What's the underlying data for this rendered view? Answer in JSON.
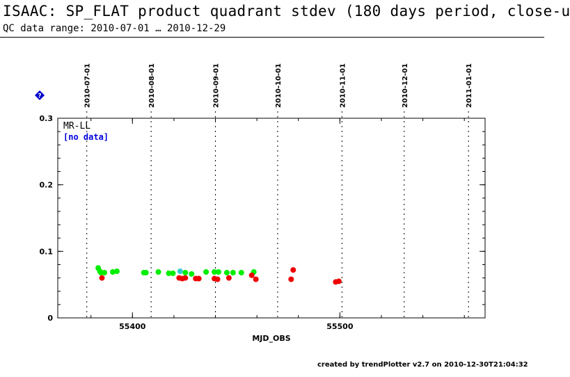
{
  "header": {
    "title": "ISAAC: SP_FLAT product quadrant stdev (180 days period, close-u",
    "subtitle": "QC data range: 2010-07-01 … 2010-12-29"
  },
  "footer": {
    "text": "created by trendPlotter v2.7 on 2010-12-30T21:04:32"
  },
  "help_icon": {
    "icon": "help-diamond-icon",
    "color": "#0000cc"
  },
  "chart_data": {
    "type": "scatter",
    "xlabel": "MJD_OBS",
    "xlim": [
      55364,
      55570
    ],
    "ylim": [
      0,
      0.3
    ],
    "x_ticks": [
      55400,
      55500
    ],
    "y_ticks": [
      0,
      0.1,
      0.2,
      0.3
    ],
    "y_tick_labels": [
      "0",
      "0.1",
      "0.2",
      "0.3"
    ],
    "date_lines": [
      {
        "mjd": 55378,
        "label": "2010-07-01"
      },
      {
        "mjd": 55409,
        "label": "2010-08-01"
      },
      {
        "mjd": 55440,
        "label": "2010-09-01"
      },
      {
        "mjd": 55470,
        "label": "2010-10-01"
      },
      {
        "mjd": 55501,
        "label": "2010-11-01"
      },
      {
        "mjd": 55531,
        "label": "2010-12-01"
      },
      {
        "mjd": 55562,
        "label": "2011-01-01"
      }
    ],
    "legend": {
      "series_label": "MR-LL",
      "status_label": "[no data]",
      "placement": "top-left"
    },
    "colors": {
      "green": "#00ee00",
      "red": "#ee0000",
      "cyan": "#33cccc",
      "no_data": "#0000dd"
    },
    "series": [
      {
        "color": "#00ee00",
        "points": [
          [
            55383.5,
            0.075
          ],
          [
            55384.3,
            0.07
          ],
          [
            55384.8,
            0.068
          ],
          [
            55386.5,
            0.068
          ],
          [
            55390.5,
            0.069
          ],
          [
            55392.5,
            0.07
          ],
          [
            55405.5,
            0.068
          ],
          [
            55406.5,
            0.068
          ],
          [
            55412.5,
            0.069
          ],
          [
            55417.5,
            0.067
          ],
          [
            55419.5,
            0.067
          ],
          [
            55425.5,
            0.068
          ],
          [
            55428.5,
            0.066
          ],
          [
            55435.5,
            0.069
          ],
          [
            55439.5,
            0.069
          ],
          [
            55441.5,
            0.069
          ],
          [
            55445.5,
            0.068
          ],
          [
            55448.5,
            0.068
          ],
          [
            55452.5,
            0.068
          ],
          [
            55458.5,
            0.069
          ]
        ]
      },
      {
        "color": "#ee0000",
        "points": [
          [
            55385.3,
            0.06
          ],
          [
            55422.5,
            0.06
          ],
          [
            55424.0,
            0.059
          ],
          [
            55425.5,
            0.06
          ],
          [
            55430.5,
            0.059
          ],
          [
            55432.0,
            0.059
          ],
          [
            55439.5,
            0.059
          ],
          [
            55441.0,
            0.058
          ],
          [
            55446.5,
            0.06
          ],
          [
            55457.5,
            0.064
          ],
          [
            55459.5,
            0.058
          ],
          [
            55476.5,
            0.058
          ],
          [
            55477.5,
            0.072
          ],
          [
            55498.0,
            0.054
          ],
          [
            55499.5,
            0.055
          ]
        ]
      },
      {
        "color": "#33cccc",
        "points": [
          [
            55423.0,
            0.07
          ]
        ]
      }
    ]
  }
}
